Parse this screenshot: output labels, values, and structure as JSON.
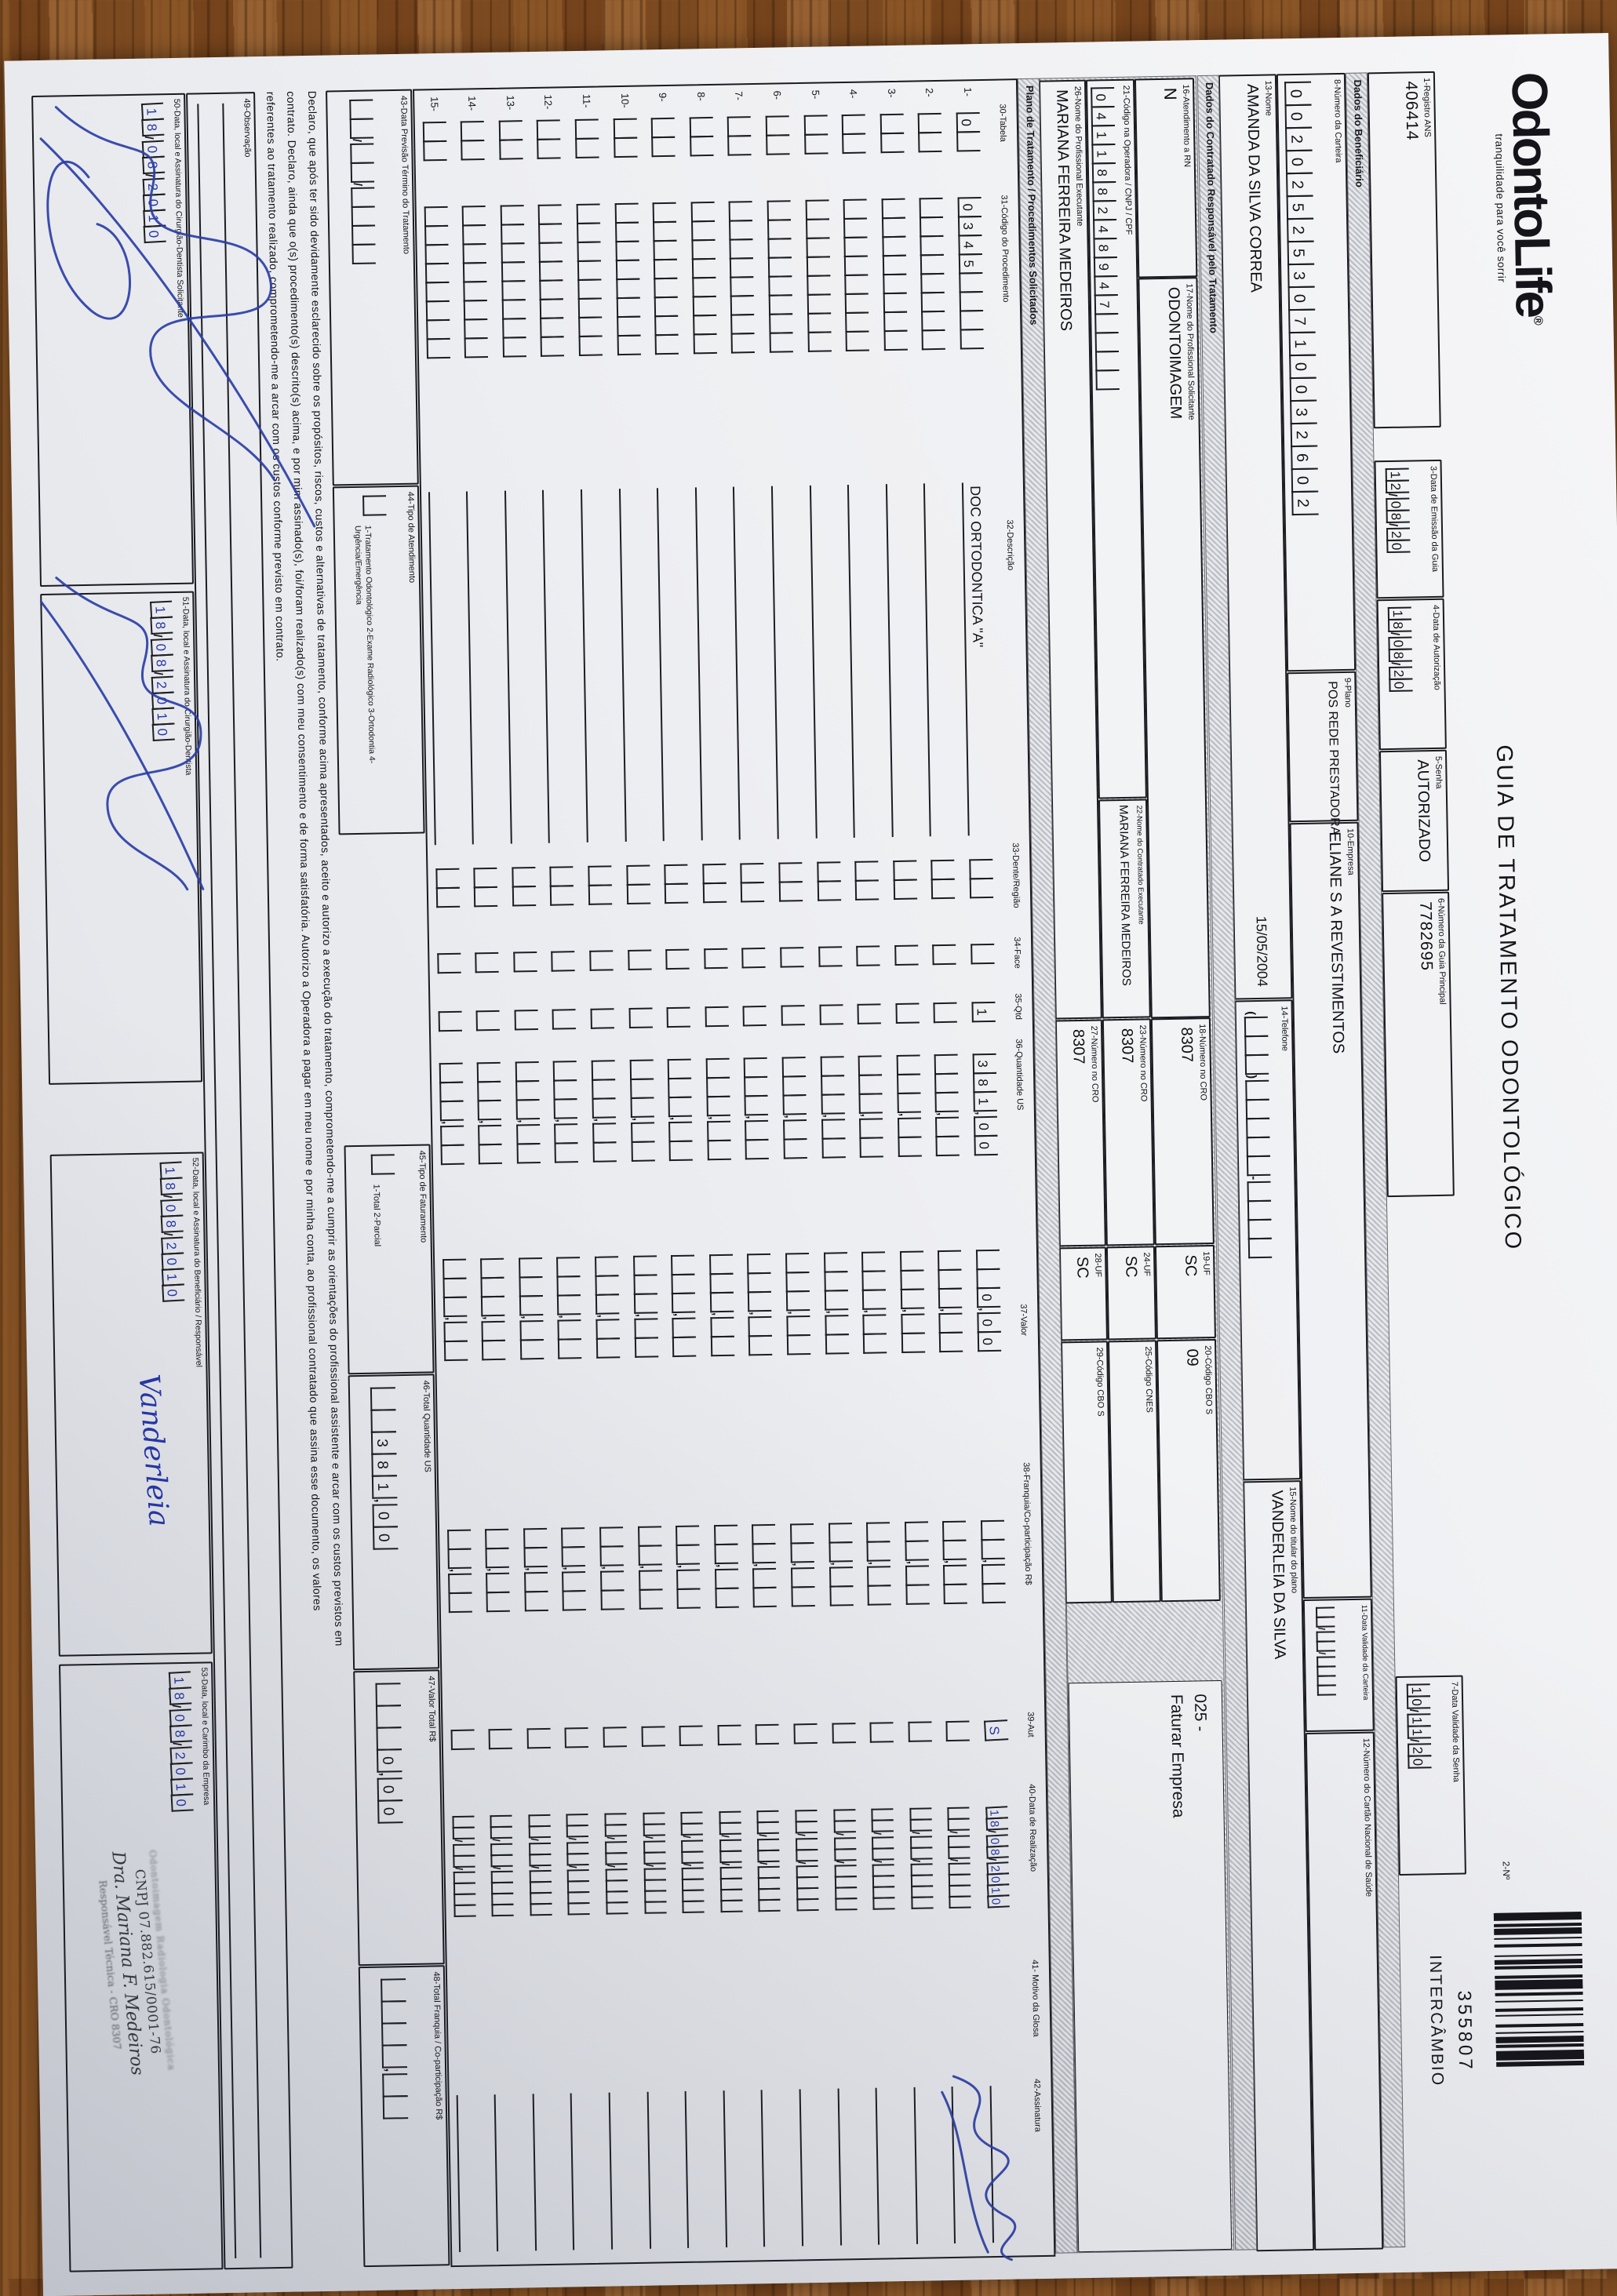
{
  "colors": {
    "pen_ink": "#2537a8",
    "print_ink": "#14141a",
    "paper": "#eeeff2",
    "wood": "#8a5526"
  },
  "header": {
    "logo_text": "OdontoLife",
    "logo_reg": "®",
    "logo_tagline": "tranquilidade para você sorrir",
    "title": "GUIA DE TRATAMENTO ODONTOLÓGICO",
    "form_number_label": "2-Nº",
    "form_number": "355807",
    "intercambio": "INTERCÂMBIO"
  },
  "sections": {
    "beneficiario": "Dados do Beneficiário",
    "contratado": "Dados do Contratado Responsável pelo Tratamento",
    "plano": "Plano de Tratamento / Procedimentos Solicitados"
  },
  "fields": {
    "f1": {
      "label": "1-Registro ANS",
      "value": "406414"
    },
    "f3": {
      "label": "3-Data de Emissão da Guia",
      "value": "12/08/20"
    },
    "f4": {
      "label": "4-Data de Autorização",
      "value": "18/08/20"
    },
    "f5": {
      "label": "5-Senha",
      "value": "AUTORIZADO"
    },
    "f6": {
      "label": "6-Número da Guia Principal",
      "value": "7782695"
    },
    "f7": {
      "label": "7-Data Validade da Senha",
      "value": "10/11/20"
    },
    "f8": {
      "label": "8-Número da Carteira",
      "value": "0020252530710032602"
    },
    "f9": {
      "label": "9-Plano",
      "value": "POS REDE PRESTADORA"
    },
    "f10": {
      "label": "10-Empresa",
      "value": "ELIANE S A REVESTIMENTOS"
    },
    "f11": {
      "label": "11-Data Validade da Carteira",
      "value": "__/__/____"
    },
    "f12": {
      "label": "12-Número do Cartão Nacional de Saúde",
      "value": ""
    },
    "f13": {
      "label": "13-Nome",
      "value": "AMANDA DA SILVA CORREA",
      "date_note": "15/05/2004"
    },
    "f14": {
      "label": "14-Telefone",
      "value": "(___)_____-____"
    },
    "f15": {
      "label": "15-Nome do titular do plano",
      "value": "VANDERLEIA DA SILVA"
    },
    "f16": {
      "label": "16-Atendimento a RN",
      "value": "N"
    },
    "f17": {
      "label": "17-Nome do Profissional Solicitante",
      "value": "ODONTOIMAGEM"
    },
    "f18": {
      "label": "18-Número no CRO",
      "value": "8307"
    },
    "f19": {
      "label": "19-UF",
      "value": "SC"
    },
    "f20": {
      "label": "20-Código CBO S",
      "value": "09"
    },
    "f21": {
      "label": "21-Código na Operadora / CNPJ / CPF",
      "value": "041188248947____"
    },
    "f22": {
      "label": "22-Nome do Contratado Executante",
      "value": "MARIANA FERREIRA MEDEIROS"
    },
    "f23": {
      "label": "23-Número no CRO",
      "value": "8307"
    },
    "f24": {
      "label": "24-UF",
      "value": "SC"
    },
    "f25": {
      "label": "25-Código CNES",
      "value": ""
    },
    "f26": {
      "label": "26-Nome do Profissional Executante",
      "value": "MARIANA FERREIRA MEDEIROS"
    },
    "f27": {
      "label": "27-Número no CRO",
      "value": "8307"
    },
    "f28": {
      "label": "28-UF",
      "value": "SC"
    },
    "f29": {
      "label": "29-Código CBO S",
      "value": ""
    },
    "billing_note_code": "025 -",
    "billing_note_text": "Faturar Empresa"
  },
  "table": {
    "headers": [
      "30-Tabela",
      "31-Código do Procedimento",
      "32-Descrição",
      "33-Dente/Região",
      "34-Face",
      "35-Qtd",
      "36-Quantidade US",
      "37-Valor",
      "38-Franquia/Co-participação R$",
      "39-Aut",
      "40-Data de Realização",
      "41- Motivo da Glosa",
      "42-Assinatura"
    ],
    "rows": [
      {
        "num": "1-",
        "t30": "0_",
        "code": "0345____",
        "desc": "DOC ORTODONTICA \"A\"",
        "dente": "__",
        "face": "_",
        "qtd": "1",
        "us": "381,00",
        "valor": "__0,00",
        "franquia": "__,__",
        "aut": "S",
        "data": "18/08/2010",
        "pen": true
      },
      {
        "num": "2-",
        "t30": "__",
        "code": "________",
        "desc": "",
        "dente": "__",
        "face": "_",
        "qtd": "_",
        "us": "___,__",
        "valor": "___,__",
        "franquia": "__,__",
        "aut": "_",
        "data": "__/__/____",
        "pen": false
      },
      {
        "num": "3-",
        "t30": "__",
        "code": "________",
        "desc": "",
        "dente": "__",
        "face": "_",
        "qtd": "_",
        "us": "___,__",
        "valor": "___,__",
        "franquia": "__,__",
        "aut": "_",
        "data": "__/__/____",
        "pen": false
      },
      {
        "num": "4-",
        "t30": "__",
        "code": "________",
        "desc": "",
        "dente": "__",
        "face": "_",
        "qtd": "_",
        "us": "___,__",
        "valor": "___,__",
        "franquia": "__,__",
        "aut": "_",
        "data": "__/__/____",
        "pen": false
      },
      {
        "num": "5-",
        "t30": "__",
        "code": "________",
        "desc": "",
        "dente": "__",
        "face": "_",
        "qtd": "_",
        "us": "___,__",
        "valor": "___,__",
        "franquia": "__,__",
        "aut": "_",
        "data": "__/__/____",
        "pen": false
      },
      {
        "num": "6-",
        "t30": "__",
        "code": "________",
        "desc": "",
        "dente": "__",
        "face": "_",
        "qtd": "_",
        "us": "___,__",
        "valor": "___,__",
        "franquia": "__,__",
        "aut": "_",
        "data": "__/__/____",
        "pen": false
      },
      {
        "num": "7-",
        "t30": "__",
        "code": "________",
        "desc": "",
        "dente": "__",
        "face": "_",
        "qtd": "_",
        "us": "___,__",
        "valor": "___,__",
        "franquia": "__,__",
        "aut": "_",
        "data": "__/__/____",
        "pen": false
      },
      {
        "num": "8-",
        "t30": "__",
        "code": "________",
        "desc": "",
        "dente": "__",
        "face": "_",
        "qtd": "_",
        "us": "___,__",
        "valor": "___,__",
        "franquia": "__,__",
        "aut": "_",
        "data": "__/__/____",
        "pen": false
      },
      {
        "num": "9-",
        "t30": "__",
        "code": "________",
        "desc": "",
        "dente": "__",
        "face": "_",
        "qtd": "_",
        "us": "___,__",
        "valor": "___,__",
        "franquia": "__,__",
        "aut": "_",
        "data": "__/__/____",
        "pen": false
      },
      {
        "num": "10-",
        "t30": "__",
        "code": "________",
        "desc": "",
        "dente": "__",
        "face": "_",
        "qtd": "_",
        "us": "___,__",
        "valor": "___,__",
        "franquia": "__,__",
        "aut": "_",
        "data": "__/__/____",
        "pen": false
      },
      {
        "num": "11-",
        "t30": "__",
        "code": "________",
        "desc": "",
        "dente": "__",
        "face": "_",
        "qtd": "_",
        "us": "___,__",
        "valor": "___,__",
        "franquia": "__,__",
        "aut": "_",
        "data": "__/__/____",
        "pen": false
      },
      {
        "num": "12-",
        "t30": "__",
        "code": "________",
        "desc": "",
        "dente": "__",
        "face": "_",
        "qtd": "_",
        "us": "___,__",
        "valor": "___,__",
        "franquia": "__,__",
        "aut": "_",
        "data": "__/__/____",
        "pen": false
      },
      {
        "num": "13-",
        "t30": "__",
        "code": "________",
        "desc": "",
        "dente": "__",
        "face": "_",
        "qtd": "_",
        "us": "___,__",
        "valor": "___,__",
        "franquia": "__,__",
        "aut": "_",
        "data": "__/__/____",
        "pen": false
      },
      {
        "num": "14-",
        "t30": "__",
        "code": "________",
        "desc": "",
        "dente": "__",
        "face": "_",
        "qtd": "_",
        "us": "___,__",
        "valor": "___,__",
        "franquia": "__,__",
        "aut": "_",
        "data": "__/__/____",
        "pen": false
      },
      {
        "num": "15-",
        "t30": "__",
        "code": "________",
        "desc": "",
        "dente": "__",
        "face": "_",
        "qtd": "_",
        "us": "___,__",
        "valor": "___,__",
        "franquia": "__,__",
        "aut": "_",
        "data": "__/__/____",
        "pen": false
      }
    ]
  },
  "totals": {
    "f43": {
      "label": "43-Data Previsão Término do Tratamento",
      "value": "__/__/____"
    },
    "f44": {
      "label": "44-Tipo de Atendimento",
      "checkbox": "_",
      "options": "1-Tratamento Odontológico  2-Exame Radiológico  3-Ortodontia  4-Urgência/Emergência"
    },
    "f45": {
      "label": "45-Tipo de Faturamento",
      "checkbox": "_",
      "options": "1-Total  2-Parcial"
    },
    "f46": {
      "label": "46-Total Quantidade US",
      "value": "__381,00"
    },
    "f47": {
      "label": "47-Valor Total R$",
      "value": "___0,00"
    },
    "f48": {
      "label": "48-Total Franquia / Co-participação R$",
      "value": "____,__"
    }
  },
  "declaration": {
    "line1": "Declaro, que após ter sido devidamente esclarecido sobre os propósitos, riscos, custos e alternativas de tratamento, conforme acima apresentados, aceito e autorizo a execução do tratamento, comprometendo-me a cumprir as orientações do profissional assistente e arcar com os custos previstos em",
    "line2": "contrato. Declaro, ainda que o(s) procedimento(s) descrito(s) acima, e por mim assinado(s), foi/foram realizado(s) com meu consentimento e de forma satisfatória. Autorizo a Operadora a pagar em meu nome e por minha conta, ao profissional contratado que assina esse documento, os valores",
    "line3": "referentes ao tratamento realizado, comprometendo-me a arcar com os custos conforme previsto em contrato."
  },
  "observacao": {
    "label": "49-Observação"
  },
  "signatures": {
    "f50": {
      "label": "50-Data, local e Assinatura do Cirurgião-Dentista Solicitante",
      "date": "18/08/2010"
    },
    "f51": {
      "label": "51-Data, local e Assinatura do Cirurgião-Dentista",
      "date": "18/08/2010"
    },
    "f52": {
      "label": "52-Data, local e Assinatura do Beneficiário / Responsável",
      "date": "18/08/2010",
      "signature": "Vanderleia"
    },
    "f53": {
      "label": "53-Data, local e Carimbo da Empresa",
      "date": "18/08/2010"
    }
  },
  "stamp": {
    "line1": "Odontoimagem Radiologia Odontológica",
    "cnpj": "CNPJ 07.882.615/0001-76",
    "name": "Dra. Mariana F. Medeiros",
    "role": "Responsável Técnica - CRO 8307"
  }
}
